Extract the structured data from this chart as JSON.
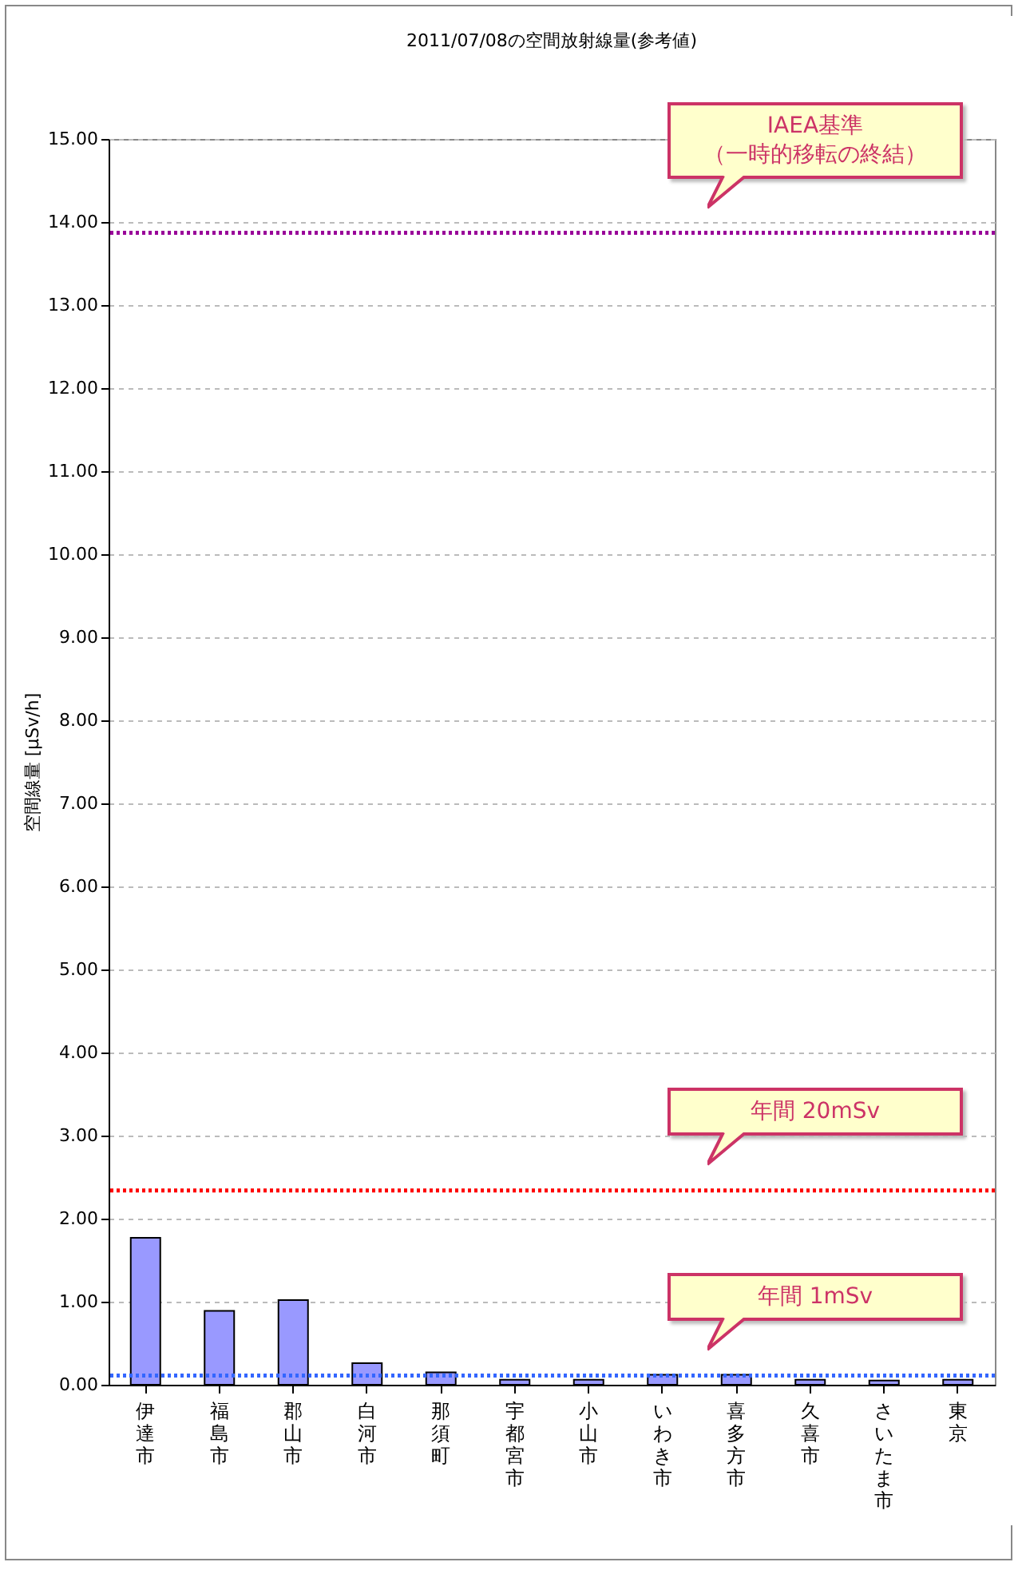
{
  "chart_data": {
    "type": "bar",
    "title": "2011/07/08の空間放射線量(参考値)",
    "ylabel": "空間線量 [μSv/h]",
    "categories": [
      "伊達市",
      "福島市",
      "郡山市",
      "白河市",
      "那須町",
      "宇都宮市",
      "小山市",
      "いわき市",
      "喜多方市",
      "久喜市",
      "さいたま市",
      "東京"
    ],
    "values": [
      1.77,
      0.89,
      1.02,
      0.26,
      0.15,
      0.06,
      0.06,
      0.12,
      0.12,
      0.06,
      0.05,
      0.06
    ],
    "color": "#9999ff",
    "ylim": [
      0,
      15
    ],
    "yticks": [
      {
        "value": 0,
        "label": "0.00"
      },
      {
        "value": 1,
        "label": "1.00"
      },
      {
        "value": 2,
        "label": "2.00"
      },
      {
        "value": 3,
        "label": "3.00"
      },
      {
        "value": 4,
        "label": "4.00"
      },
      {
        "value": 5,
        "label": "5.00"
      },
      {
        "value": 6,
        "label": "6.00"
      },
      {
        "value": 7,
        "label": "7.00"
      },
      {
        "value": 8,
        "label": "8.00"
      },
      {
        "value": 9,
        "label": "9.00"
      },
      {
        "value": 10,
        "label": "10.00"
      },
      {
        "value": 11,
        "label": "11.00"
      },
      {
        "value": 12,
        "label": "12.00"
      },
      {
        "value": 13,
        "label": "13.00"
      },
      {
        "value": 14,
        "label": "14.00"
      },
      {
        "value": 15,
        "label": "15.00"
      }
    ],
    "grid": "y",
    "ref_lines": [
      {
        "axis": "y",
        "value": 13.87,
        "label": "IAEA基準（一時的移転の終結）",
        "color": "#990099",
        "line_style": "dotted"
      },
      {
        "axis": "y",
        "value": 2.34,
        "label": "年間 20mSv",
        "color": "#ff0000",
        "line_style": "dotted"
      },
      {
        "axis": "y",
        "value": 0.11,
        "label": "年間 1mSv",
        "color": "#3366ff",
        "line_style": "dotted"
      }
    ]
  }
}
